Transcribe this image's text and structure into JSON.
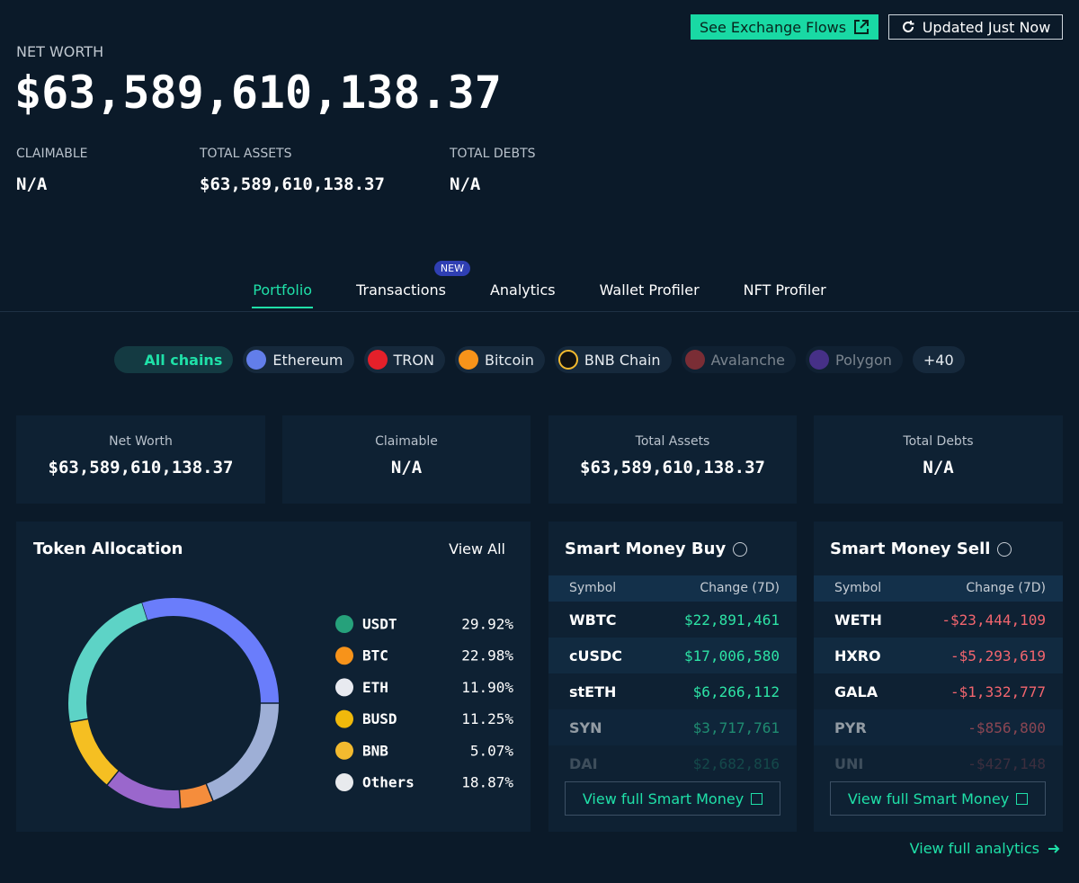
{
  "header": {
    "buttons": {
      "exchange_flows": "See Exchange Flows",
      "updated": "Updated Just Now"
    },
    "title": "NET WORTH",
    "value": "$63,589,610,138.37",
    "stats": [
      {
        "label": "CLAIMABLE",
        "value": "N/A"
      },
      {
        "label": "TOTAL ASSETS",
        "value": "$63,589,610,138.37"
      },
      {
        "label": "TOTAL DEBTS",
        "value": "N/A"
      }
    ]
  },
  "tabs": {
    "items": [
      "Portfolio",
      "Transactions",
      "Analytics",
      "Wallet Profiler",
      "NFT Profiler"
    ],
    "badge": "NEW"
  },
  "chains": {
    "items": [
      "All chains",
      "Ethereum",
      "TRON",
      "Bitcoin",
      "BNB Chain",
      "Avalanche",
      "Polygon"
    ],
    "more": "+40"
  },
  "summary": [
    {
      "label": "Net Worth",
      "value": "$63,589,610,138.37"
    },
    {
      "label": "Claimable",
      "value": "N/A"
    },
    {
      "label": "Total Assets",
      "value": "$63,589,610,138.37"
    },
    {
      "label": "Total Debts",
      "value": "N/A"
    }
  ],
  "chart_data": {
    "type": "pie",
    "title": "Token Allocation",
    "view_all": "View All",
    "categories": [
      "USDT",
      "BTC",
      "ETH",
      "BUSD",
      "BNB",
      "Others"
    ],
    "values": [
      29.92,
      22.98,
      11.9,
      11.25,
      5.07,
      18.87
    ],
    "value_labels": [
      "29.92%",
      "22.98%",
      "11.90%",
      "11.25%",
      "5.07%",
      "18.87%"
    ],
    "colors": [
      "#6a7dfb",
      "#5dd3c6",
      "#9a67cc",
      "#f5bf22",
      "#f58d3c",
      "#9eafd6"
    ]
  },
  "smart_money_buy": {
    "title": "Smart Money Buy",
    "columns": [
      "Symbol",
      "Change (7D)"
    ],
    "rows": [
      [
        "WBTC",
        "$22,891,461"
      ],
      [
        "cUSDC",
        "$17,006,580"
      ],
      [
        "stETH",
        "$6,266,112"
      ],
      [
        "SYN",
        "$3,717,761"
      ],
      [
        "DAI",
        "$2,682,816"
      ]
    ],
    "link": "View full Smart Money"
  },
  "smart_money_sell": {
    "title": "Smart Money Sell",
    "columns": [
      "Symbol",
      "Change (7D)"
    ],
    "rows": [
      [
        "WETH",
        "-$23,444,109"
      ],
      [
        "HXRO",
        "-$5,293,619"
      ],
      [
        "GALA",
        "-$1,332,777"
      ],
      [
        "PYR",
        "-$856,800"
      ],
      [
        "UNI",
        "-$427,148"
      ]
    ],
    "link": "View full Smart Money"
  },
  "footer": {
    "link": "View full analytics"
  }
}
